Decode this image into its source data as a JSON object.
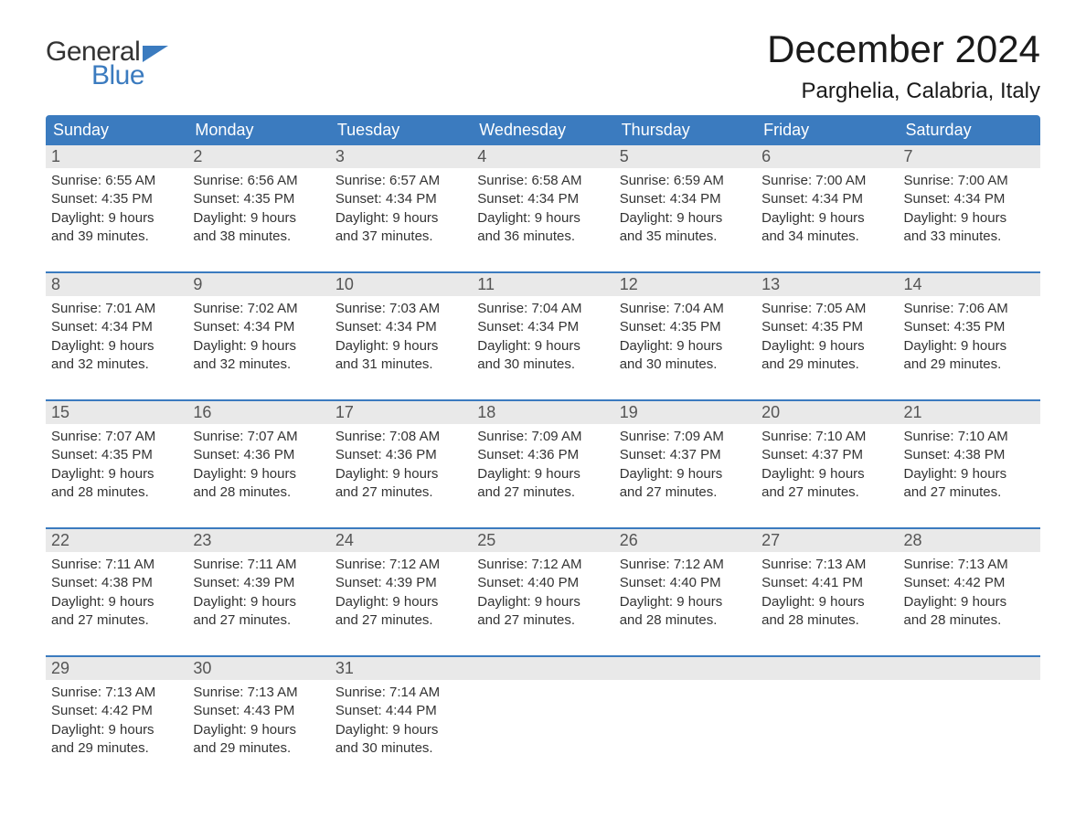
{
  "logo": {
    "word1": "General",
    "word2": "Blue"
  },
  "title": "December 2024",
  "subtitle": "Parghelia, Calabria, Italy",
  "colors": {
    "brand_blue": "#3b7bbf",
    "header_text": "#ffffff",
    "daynum_bg": "#e9e9e9",
    "daynum_text": "#555555",
    "body_text": "#333333",
    "background": "#ffffff"
  },
  "font_sizes": {
    "title": 42,
    "subtitle": 24,
    "logo": 30,
    "weekday_header": 18,
    "daynum": 18,
    "cell": 15
  },
  "days_of_week": [
    "Sunday",
    "Monday",
    "Tuesday",
    "Wednesday",
    "Thursday",
    "Friday",
    "Saturday"
  ],
  "weeks": [
    {
      "days": [
        {
          "num": "1",
          "l1": "Sunrise: 6:55 AM",
          "l2": "Sunset: 4:35 PM",
          "l3": "Daylight: 9 hours",
          "l4": "and 39 minutes."
        },
        {
          "num": "2",
          "l1": "Sunrise: 6:56 AM",
          "l2": "Sunset: 4:35 PM",
          "l3": "Daylight: 9 hours",
          "l4": "and 38 minutes."
        },
        {
          "num": "3",
          "l1": "Sunrise: 6:57 AM",
          "l2": "Sunset: 4:34 PM",
          "l3": "Daylight: 9 hours",
          "l4": "and 37 minutes."
        },
        {
          "num": "4",
          "l1": "Sunrise: 6:58 AM",
          "l2": "Sunset: 4:34 PM",
          "l3": "Daylight: 9 hours",
          "l4": "and 36 minutes."
        },
        {
          "num": "5",
          "l1": "Sunrise: 6:59 AM",
          "l2": "Sunset: 4:34 PM",
          "l3": "Daylight: 9 hours",
          "l4": "and 35 minutes."
        },
        {
          "num": "6",
          "l1": "Sunrise: 7:00 AM",
          "l2": "Sunset: 4:34 PM",
          "l3": "Daylight: 9 hours",
          "l4": "and 34 minutes."
        },
        {
          "num": "7",
          "l1": "Sunrise: 7:00 AM",
          "l2": "Sunset: 4:34 PM",
          "l3": "Daylight: 9 hours",
          "l4": "and 33 minutes."
        }
      ]
    },
    {
      "days": [
        {
          "num": "8",
          "l1": "Sunrise: 7:01 AM",
          "l2": "Sunset: 4:34 PM",
          "l3": "Daylight: 9 hours",
          "l4": "and 32 minutes."
        },
        {
          "num": "9",
          "l1": "Sunrise: 7:02 AM",
          "l2": "Sunset: 4:34 PM",
          "l3": "Daylight: 9 hours",
          "l4": "and 32 minutes."
        },
        {
          "num": "10",
          "l1": "Sunrise: 7:03 AM",
          "l2": "Sunset: 4:34 PM",
          "l3": "Daylight: 9 hours",
          "l4": "and 31 minutes."
        },
        {
          "num": "11",
          "l1": "Sunrise: 7:04 AM",
          "l2": "Sunset: 4:34 PM",
          "l3": "Daylight: 9 hours",
          "l4": "and 30 minutes."
        },
        {
          "num": "12",
          "l1": "Sunrise: 7:04 AM",
          "l2": "Sunset: 4:35 PM",
          "l3": "Daylight: 9 hours",
          "l4": "and 30 minutes."
        },
        {
          "num": "13",
          "l1": "Sunrise: 7:05 AM",
          "l2": "Sunset: 4:35 PM",
          "l3": "Daylight: 9 hours",
          "l4": "and 29 minutes."
        },
        {
          "num": "14",
          "l1": "Sunrise: 7:06 AM",
          "l2": "Sunset: 4:35 PM",
          "l3": "Daylight: 9 hours",
          "l4": "and 29 minutes."
        }
      ]
    },
    {
      "days": [
        {
          "num": "15",
          "l1": "Sunrise: 7:07 AM",
          "l2": "Sunset: 4:35 PM",
          "l3": "Daylight: 9 hours",
          "l4": "and 28 minutes."
        },
        {
          "num": "16",
          "l1": "Sunrise: 7:07 AM",
          "l2": "Sunset: 4:36 PM",
          "l3": "Daylight: 9 hours",
          "l4": "and 28 minutes."
        },
        {
          "num": "17",
          "l1": "Sunrise: 7:08 AM",
          "l2": "Sunset: 4:36 PM",
          "l3": "Daylight: 9 hours",
          "l4": "and 27 minutes."
        },
        {
          "num": "18",
          "l1": "Sunrise: 7:09 AM",
          "l2": "Sunset: 4:36 PM",
          "l3": "Daylight: 9 hours",
          "l4": "and 27 minutes."
        },
        {
          "num": "19",
          "l1": "Sunrise: 7:09 AM",
          "l2": "Sunset: 4:37 PM",
          "l3": "Daylight: 9 hours",
          "l4": "and 27 minutes."
        },
        {
          "num": "20",
          "l1": "Sunrise: 7:10 AM",
          "l2": "Sunset: 4:37 PM",
          "l3": "Daylight: 9 hours",
          "l4": "and 27 minutes."
        },
        {
          "num": "21",
          "l1": "Sunrise: 7:10 AM",
          "l2": "Sunset: 4:38 PM",
          "l3": "Daylight: 9 hours",
          "l4": "and 27 minutes."
        }
      ]
    },
    {
      "days": [
        {
          "num": "22",
          "l1": "Sunrise: 7:11 AM",
          "l2": "Sunset: 4:38 PM",
          "l3": "Daylight: 9 hours",
          "l4": "and 27 minutes."
        },
        {
          "num": "23",
          "l1": "Sunrise: 7:11 AM",
          "l2": "Sunset: 4:39 PM",
          "l3": "Daylight: 9 hours",
          "l4": "and 27 minutes."
        },
        {
          "num": "24",
          "l1": "Sunrise: 7:12 AM",
          "l2": "Sunset: 4:39 PM",
          "l3": "Daylight: 9 hours",
          "l4": "and 27 minutes."
        },
        {
          "num": "25",
          "l1": "Sunrise: 7:12 AM",
          "l2": "Sunset: 4:40 PM",
          "l3": "Daylight: 9 hours",
          "l4": "and 27 minutes."
        },
        {
          "num": "26",
          "l1": "Sunrise: 7:12 AM",
          "l2": "Sunset: 4:40 PM",
          "l3": "Daylight: 9 hours",
          "l4": "and 28 minutes."
        },
        {
          "num": "27",
          "l1": "Sunrise: 7:13 AM",
          "l2": "Sunset: 4:41 PM",
          "l3": "Daylight: 9 hours",
          "l4": "and 28 minutes."
        },
        {
          "num": "28",
          "l1": "Sunrise: 7:13 AM",
          "l2": "Sunset: 4:42 PM",
          "l3": "Daylight: 9 hours",
          "l4": "and 28 minutes."
        }
      ]
    },
    {
      "days": [
        {
          "num": "29",
          "l1": "Sunrise: 7:13 AM",
          "l2": "Sunset: 4:42 PM",
          "l3": "Daylight: 9 hours",
          "l4": "and 29 minutes."
        },
        {
          "num": "30",
          "l1": "Sunrise: 7:13 AM",
          "l2": "Sunset: 4:43 PM",
          "l3": "Daylight: 9 hours",
          "l4": "and 29 minutes."
        },
        {
          "num": "31",
          "l1": "Sunrise: 7:14 AM",
          "l2": "Sunset: 4:44 PM",
          "l3": "Daylight: 9 hours",
          "l4": "and 30 minutes."
        },
        {
          "num": "",
          "l1": "",
          "l2": "",
          "l3": "",
          "l4": ""
        },
        {
          "num": "",
          "l1": "",
          "l2": "",
          "l3": "",
          "l4": ""
        },
        {
          "num": "",
          "l1": "",
          "l2": "",
          "l3": "",
          "l4": ""
        },
        {
          "num": "",
          "l1": "",
          "l2": "",
          "l3": "",
          "l4": ""
        }
      ]
    }
  ]
}
